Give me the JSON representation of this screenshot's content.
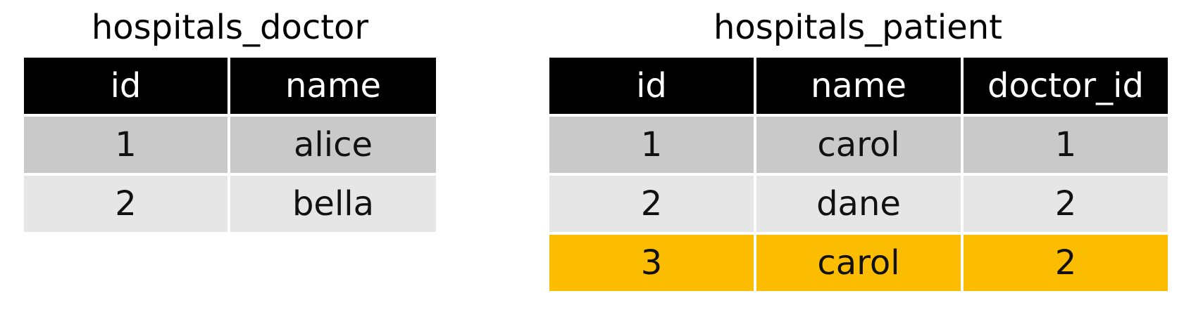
{
  "doctor_table": {
    "title": "hospitals_doctor",
    "columns": [
      "id",
      "name"
    ],
    "rows": [
      {
        "cells": [
          "1",
          "alice"
        ],
        "style": "dark"
      },
      {
        "cells": [
          "2",
          "bella"
        ],
        "style": "light"
      }
    ]
  },
  "patient_table": {
    "title": "hospitals_patient",
    "columns": [
      "id",
      "name",
      "doctor_id"
    ],
    "rows": [
      {
        "cells": [
          "1",
          "carol",
          "1"
        ],
        "style": "dark"
      },
      {
        "cells": [
          "2",
          "dane",
          "2"
        ],
        "style": "light"
      },
      {
        "cells": [
          "3",
          "carol",
          "2"
        ],
        "style": "highlight"
      }
    ]
  },
  "colors": {
    "header_bg": "#000000",
    "header_text": "#ffffff",
    "row_dark": "#c9c9c9",
    "row_light": "#e6e6e6",
    "row_highlight": "#fcbd00"
  }
}
